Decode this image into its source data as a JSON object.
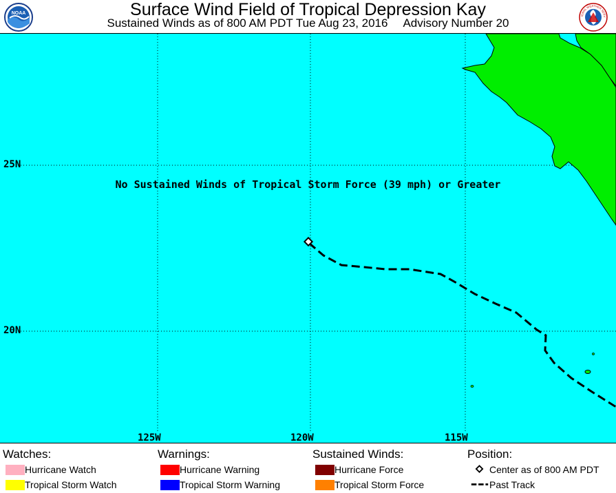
{
  "header": {
    "title": "Surface Wind Field of Tropical Depression Kay",
    "subtitle_left": "Sustained Winds as of 800 AM PDT Tue Aug 23, 2016",
    "subtitle_right": "Advisory Number 20",
    "logo_left": "NOAA",
    "logo_right": "NATIONAL WEATHER SERVICE"
  },
  "map": {
    "notice": "No Sustained Winds of Tropical Storm Force (39 mph) or Greater",
    "lat_labels": [
      "25N",
      "20N"
    ],
    "lon_labels": [
      "125W",
      "120W",
      "115W"
    ],
    "ocean_color": "#00ffff",
    "land_color": "#00ee00"
  },
  "legend": {
    "watches": {
      "title": "Watches:",
      "items": [
        {
          "label": "Hurricane Watch",
          "color": "#ffb0c0"
        },
        {
          "label": "Tropical Storm Watch",
          "color": "#ffff00"
        }
      ]
    },
    "warnings": {
      "title": "Warnings:",
      "items": [
        {
          "label": "Hurricane Warning",
          "color": "#ff0000"
        },
        {
          "label": "Tropical Storm Warning",
          "color": "#0000ff"
        }
      ]
    },
    "winds": {
      "title": "Sustained Winds:",
      "items": [
        {
          "label": "Hurricane Force",
          "color": "#800000"
        },
        {
          "label": "Tropical Storm Force",
          "color": "#ff8000"
        }
      ]
    },
    "position": {
      "title": "Position:",
      "center_label": "Center as of 800 AM PDT",
      "track_label": "Past Track"
    }
  }
}
